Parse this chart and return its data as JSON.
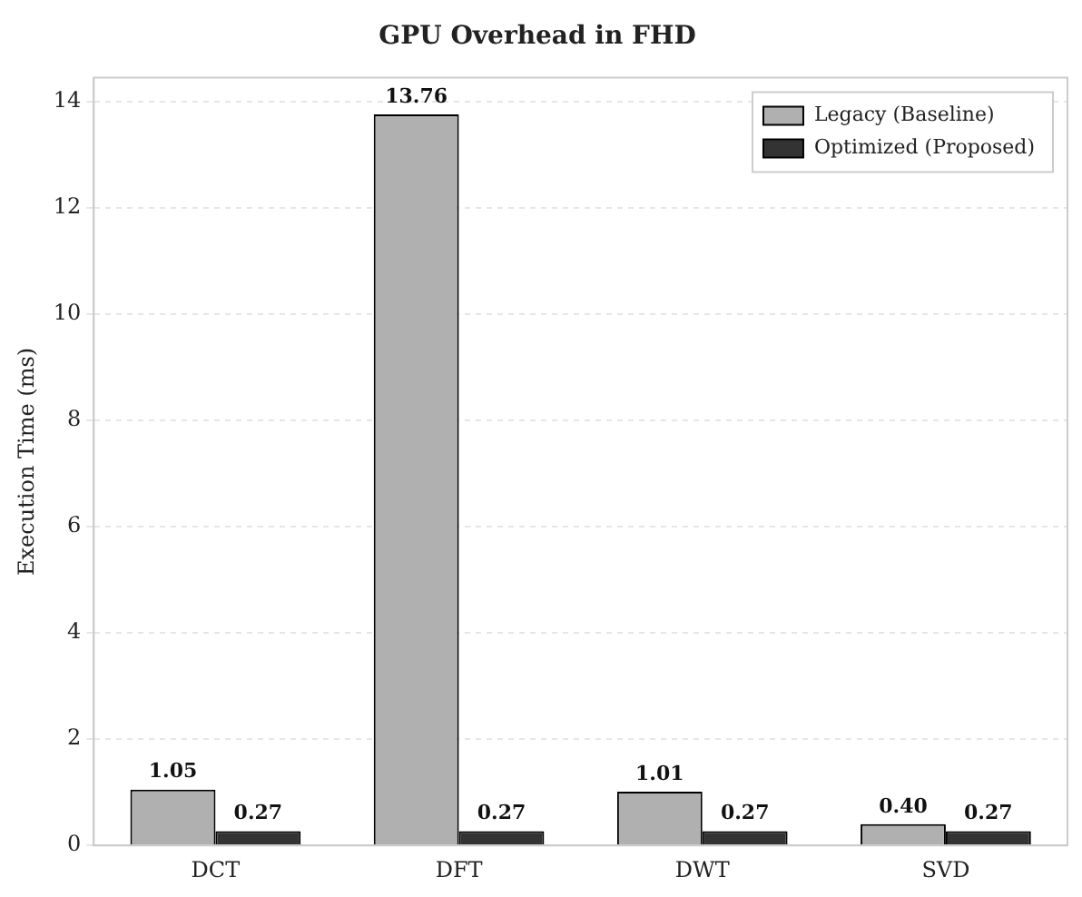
{
  "chart_data": {
    "type": "bar",
    "title": "GPU Overhead in FHD",
    "ylabel": "Execution Time (ms)",
    "categories": [
      "DCT",
      "DFT",
      "DWT",
      "SVD"
    ],
    "series": [
      {
        "name": "Legacy (Baseline)",
        "color": "#b0b0b0",
        "values": [
          1.05,
          13.76,
          1.01,
          0.4
        ],
        "value_labels": [
          "1.05",
          "13.76",
          "1.01",
          "0.40"
        ]
      },
      {
        "name": "Optimized (Proposed)",
        "color": "#333333",
        "values": [
          0.27,
          0.27,
          0.27,
          0.27
        ],
        "value_labels": [
          "0.27",
          "0.27",
          "0.27",
          "0.27"
        ]
      }
    ],
    "ylim": [
      0,
      14.45
    ],
    "yticks": [
      0,
      2,
      4,
      6,
      8,
      10,
      12,
      14
    ],
    "grid": "y",
    "legend": "top right"
  }
}
